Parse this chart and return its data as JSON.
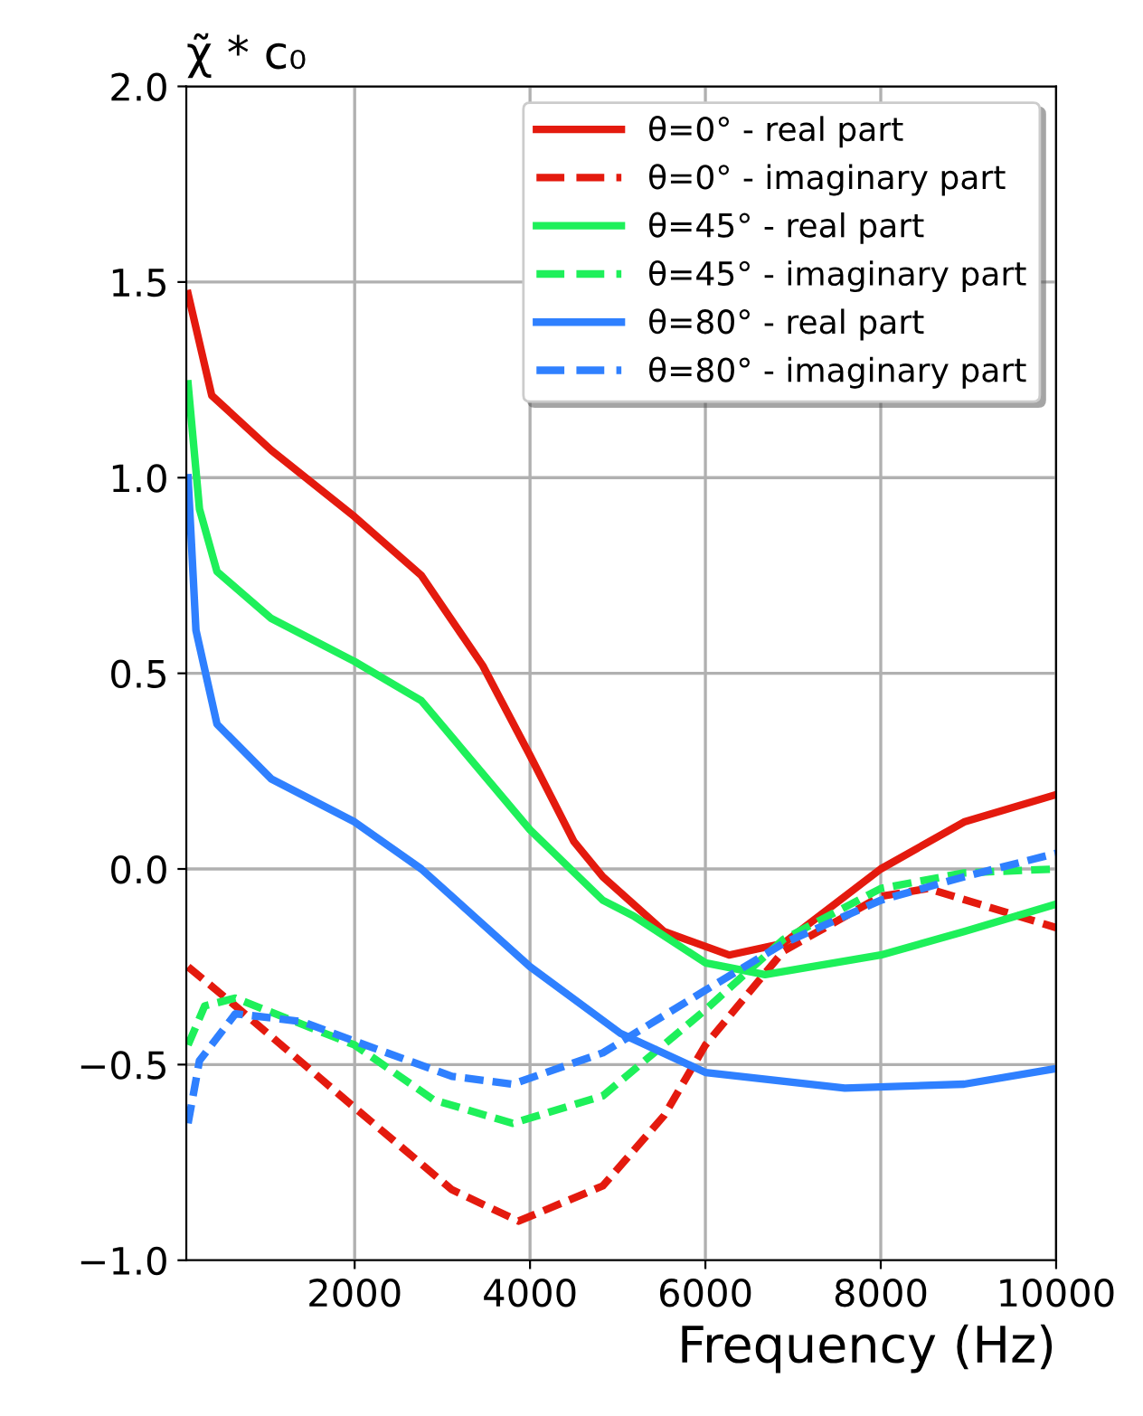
{
  "chart_data": {
    "type": "line",
    "xlabel": "Frequency (Hz)",
    "ylabel": "χ̃ * c₀",
    "xlim": [
      80,
      10000
    ],
    "xticks": [
      2000,
      4000,
      6000,
      8000,
      10000
    ],
    "ylim": [
      -1.0,
      2.0
    ],
    "yticks": [
      {
        "value": -1.0,
        "label": "−1.0"
      },
      {
        "value": -0.5,
        "label": "−0.5"
      },
      {
        "value": 0.0,
        "label": "0.0"
      },
      {
        "value": 0.5,
        "label": "0.5"
      },
      {
        "value": 1.0,
        "label": "1.0"
      },
      {
        "value": 1.5,
        "label": "1.5"
      },
      {
        "value": 2.0,
        "label": "2.0"
      }
    ],
    "grid": true,
    "legend": "top right",
    "marker": "none",
    "series": [
      {
        "name": "θ=0° - real part",
        "color": "#e41a0e",
        "line_style": "solid",
        "x": [
          100,
          370,
          1050,
          2000,
          2760,
          3460,
          4000,
          4500,
          4830,
          5530,
          6270,
          6890,
          8000,
          8950,
          10000
        ],
        "values": [
          1.47,
          1.21,
          1.07,
          0.9,
          0.75,
          0.52,
          0.29,
          0.07,
          -0.02,
          -0.16,
          -0.22,
          -0.19,
          0.0,
          0.12,
          0.19
        ]
      },
      {
        "name": "θ=0° - imaginary part",
        "color": "#e41a0e",
        "line_style": "dashed",
        "x": [
          100,
          640,
          2000,
          3110,
          3870,
          4830,
          5530,
          6000,
          6890,
          8000,
          8540,
          10000
        ],
        "values": [
          -0.25,
          -0.35,
          -0.61,
          -0.82,
          -0.9,
          -0.81,
          -0.63,
          -0.45,
          -0.21,
          -0.07,
          -0.05,
          -0.15
        ]
      },
      {
        "name": "θ=45° - real part",
        "color": "#1ef05a",
        "line_style": "solid",
        "x": [
          100,
          230,
          430,
          1050,
          2000,
          2760,
          4000,
          4830,
          5180,
          6000,
          6680,
          8000,
          8950,
          10000
        ],
        "values": [
          1.24,
          0.92,
          0.76,
          0.64,
          0.53,
          0.43,
          0.1,
          -0.08,
          -0.12,
          -0.24,
          -0.27,
          -0.22,
          -0.16,
          -0.09
        ]
      },
      {
        "name": "θ=45° - imaginary part",
        "color": "#1ef05a",
        "line_style": "dashed",
        "x": [
          100,
          290,
          640,
          2000,
          2900,
          3800,
          4830,
          6000,
          6890,
          8000,
          8950,
          10000
        ],
        "values": [
          -0.45,
          -0.35,
          -0.33,
          -0.45,
          -0.59,
          -0.65,
          -0.58,
          -0.36,
          -0.18,
          -0.05,
          -0.01,
          0.0
        ]
      },
      {
        "name": "θ=80° - real part",
        "color": "#2f80ff",
        "line_style": "solid",
        "x": [
          100,
          190,
          430,
          1050,
          2000,
          2760,
          4000,
          5030,
          6000,
          7590,
          8950,
          10000
        ],
        "values": [
          1.0,
          0.61,
          0.37,
          0.23,
          0.12,
          0.0,
          -0.25,
          -0.42,
          -0.52,
          -0.56,
          -0.55,
          -0.51
        ]
      },
      {
        "name": "θ=80° - imaginary part",
        "color": "#2f80ff",
        "line_style": "dashed",
        "x": [
          100,
          230,
          640,
          1400,
          2000,
          3110,
          3800,
          4830,
          6000,
          6890,
          8000,
          8950,
          10000
        ],
        "values": [
          -0.65,
          -0.49,
          -0.37,
          -0.39,
          -0.44,
          -0.53,
          -0.55,
          -0.47,
          -0.31,
          -0.19,
          -0.08,
          -0.02,
          0.04
        ]
      }
    ]
  }
}
